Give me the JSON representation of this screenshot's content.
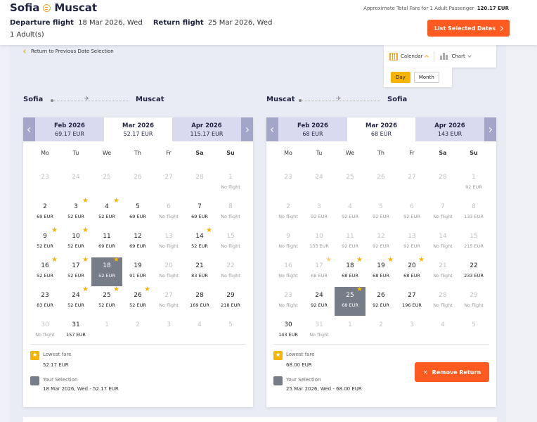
{
  "header": {
    "origin": "Sofia",
    "destination": "Muscat",
    "swap_icon": "swap-icon",
    "departure_label": "Departure flight",
    "departure_value": "18 Mar 2026, Wed",
    "return_label": "Return flight",
    "return_value": "25 Mar 2026, Wed",
    "passengers": "1 Adult(s)",
    "fare_label": "Approximate Total Fare for 1 Adult Passenger",
    "fare_value": "120.17 EUR",
    "list_button": "List Selected Dates"
  },
  "toolbar": {
    "back_link": "Return to Previous Date Selection",
    "calendar_label": "Calendar",
    "chart_label": "Chart",
    "day_label": "Day",
    "month_label": "Month"
  },
  "colors": {
    "accent": "#ff5a1f",
    "star": "#f5b400",
    "selected": "#767d89",
    "month_strip": "#d9daf0"
  },
  "weekdays": [
    "Mo",
    "Tu",
    "We",
    "Th",
    "Fr",
    "Sa",
    "Su"
  ],
  "departure": {
    "from": "Sofia",
    "to": "Muscat",
    "months": [
      {
        "name": "Feb 2026",
        "price": "69.17 EUR"
      },
      {
        "name": "Mar 2026",
        "price": "52.17 EUR"
      },
      {
        "name": "Apr 2026",
        "price": "115.17 EUR"
      }
    ],
    "days": [
      {
        "d": "23",
        "p": "",
        "dim": true
      },
      {
        "d": "24",
        "p": "",
        "dim": true
      },
      {
        "d": "25",
        "p": "",
        "dim": true
      },
      {
        "d": "26",
        "p": "",
        "dim": true
      },
      {
        "d": "27",
        "p": "",
        "dim": true
      },
      {
        "d": "28",
        "p": "",
        "dim": true
      },
      {
        "d": "1",
        "p": "No flight",
        "dim": true
      },
      {
        "d": "2",
        "p": "69 EUR"
      },
      {
        "d": "3",
        "p": "52 EUR",
        "star": true
      },
      {
        "d": "4",
        "p": "52 EUR",
        "star": true
      },
      {
        "d": "5",
        "p": "69 EUR"
      },
      {
        "d": "6",
        "p": "No flight",
        "dim": true
      },
      {
        "d": "7",
        "p": "69 EUR"
      },
      {
        "d": "8",
        "p": "No flight",
        "dim": true
      },
      {
        "d": "9",
        "p": "52 EUR",
        "star": true
      },
      {
        "d": "10",
        "p": "52 EUR",
        "star": true
      },
      {
        "d": "11",
        "p": "69 EUR"
      },
      {
        "d": "12",
        "p": "69 EUR"
      },
      {
        "d": "13",
        "p": "No flight",
        "dim": true
      },
      {
        "d": "14",
        "p": "52 EUR",
        "star": true
      },
      {
        "d": "15",
        "p": "No flight",
        "dim": true
      },
      {
        "d": "16",
        "p": "52 EUR",
        "star": true
      },
      {
        "d": "17",
        "p": "52 EUR",
        "star": true
      },
      {
        "d": "18",
        "p": "52 EUR",
        "star": true,
        "sel": true
      },
      {
        "d": "19",
        "p": "91 EUR"
      },
      {
        "d": "20",
        "p": "No flight",
        "dim": true
      },
      {
        "d": "21",
        "p": "83 EUR"
      },
      {
        "d": "22",
        "p": "No flight",
        "dim": true
      },
      {
        "d": "23",
        "p": "83 EUR"
      },
      {
        "d": "24",
        "p": "52 EUR",
        "star": true
      },
      {
        "d": "25",
        "p": "52 EUR",
        "star": true
      },
      {
        "d": "26",
        "p": "52 EUR",
        "star": true
      },
      {
        "d": "27",
        "p": "No flight",
        "dim": true
      },
      {
        "d": "28",
        "p": "169 EUR"
      },
      {
        "d": "29",
        "p": "218 EUR"
      },
      {
        "d": "30",
        "p": "No flight",
        "dim": true
      },
      {
        "d": "31",
        "p": "157 EUR"
      },
      {
        "d": "1",
        "p": "",
        "dim": true
      },
      {
        "d": "2",
        "p": "",
        "dim": true
      },
      {
        "d": "3",
        "p": "",
        "dim": true
      },
      {
        "d": "4",
        "p": "",
        "dim": true
      },
      {
        "d": "5",
        "p": "",
        "dim": true
      }
    ],
    "lowest_label": "Lowest fare",
    "lowest_value": "52.17 EUR",
    "selection_label": "Your Selection",
    "selection_value": "18 Mar 2026, Wed - 52.17 EUR"
  },
  "return": {
    "from": "Muscat",
    "to": "Sofia",
    "months": [
      {
        "name": "Feb 2026",
        "price": "68 EUR"
      },
      {
        "name": "Mar 2026",
        "price": "68 EUR"
      },
      {
        "name": "Apr 2026",
        "price": "143 EUR"
      }
    ],
    "days": [
      {
        "d": "23",
        "p": "",
        "dim": true
      },
      {
        "d": "24",
        "p": "",
        "dim": true
      },
      {
        "d": "25",
        "p": "",
        "dim": true
      },
      {
        "d": "26",
        "p": "",
        "dim": true
      },
      {
        "d": "27",
        "p": "",
        "dim": true
      },
      {
        "d": "28",
        "p": "",
        "dim": true
      },
      {
        "d": "1",
        "p": "92 EUR",
        "dim": true
      },
      {
        "d": "2",
        "p": "No flight",
        "dim": true
      },
      {
        "d": "3",
        "p": "92 EUR",
        "dim": true
      },
      {
        "d": "4",
        "p": "92 EUR",
        "dim": true
      },
      {
        "d": "5",
        "p": "92 EUR",
        "dim": true
      },
      {
        "d": "6",
        "p": "92 EUR",
        "dim": true
      },
      {
        "d": "7",
        "p": "No flight",
        "dim": true
      },
      {
        "d": "8",
        "p": "133 EUR",
        "dim": true
      },
      {
        "d": "9",
        "p": "No flight",
        "dim": true
      },
      {
        "d": "10",
        "p": "133 EUR",
        "dim": true
      },
      {
        "d": "11",
        "p": "92 EUR",
        "dim": true
      },
      {
        "d": "12",
        "p": "92 EUR",
        "dim": true
      },
      {
        "d": "13",
        "p": "92 EUR",
        "dim": true
      },
      {
        "d": "14",
        "p": "No flight",
        "dim": true
      },
      {
        "d": "15",
        "p": "215 EUR",
        "dim": true
      },
      {
        "d": "16",
        "p": "No flight",
        "dim": true
      },
      {
        "d": "17",
        "p": "68 EUR",
        "dim": true,
        "star": true,
        "lightstar": true
      },
      {
        "d": "18",
        "p": "68 EUR",
        "star": true
      },
      {
        "d": "19",
        "p": "68 EUR",
        "star": true
      },
      {
        "d": "20",
        "p": "68 EUR",
        "star": true
      },
      {
        "d": "21",
        "p": "No flight",
        "dim": true
      },
      {
        "d": "22",
        "p": "233 EUR"
      },
      {
        "d": "23",
        "p": "No flight",
        "dim": true
      },
      {
        "d": "24",
        "p": "92 EUR"
      },
      {
        "d": "25",
        "p": "68 EUR",
        "star": true,
        "sel": true
      },
      {
        "d": "26",
        "p": "92 EUR"
      },
      {
        "d": "27",
        "p": "196 EUR"
      },
      {
        "d": "28",
        "p": "No flight",
        "dim": true
      },
      {
        "d": "29",
        "p": "No flight",
        "dim": true
      },
      {
        "d": "30",
        "p": "143 EUR"
      },
      {
        "d": "31",
        "p": "No flight",
        "dim": true
      },
      {
        "d": "1",
        "p": "",
        "dim": true
      },
      {
        "d": "2",
        "p": "",
        "dim": true
      },
      {
        "d": "3",
        "p": "",
        "dim": true
      },
      {
        "d": "4",
        "p": "",
        "dim": true
      },
      {
        "d": "5",
        "p": "",
        "dim": true
      }
    ],
    "lowest_label": "Lowest fare",
    "lowest_value": "68.00 EUR",
    "selection_label": "Your Selection",
    "selection_value": "25 Mar 2026, Wed - 68.00 EUR",
    "remove_button": "Remove Return"
  }
}
